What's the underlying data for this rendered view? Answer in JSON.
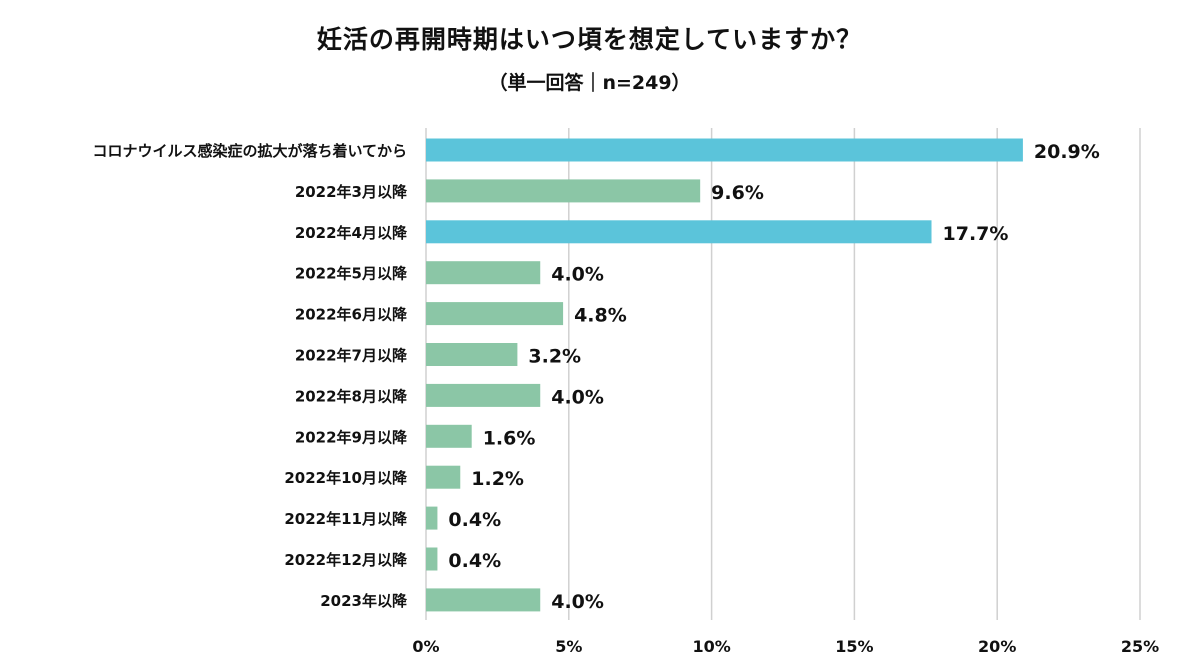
{
  "chart_data": {
    "type": "bar",
    "orientation": "horizontal",
    "title": "妊活の再開時期はいつ頃を想定していますか？",
    "subtitle": "（単一回答｜n=249）",
    "categories": [
      "コロナウイルス感染症の拡大が落ち着いてから",
      "2022年3月以降",
      "2022年4月以降",
      "2022年5月以降",
      "2022年6月以降",
      "2022年7月以降",
      "2022年8月以降",
      "2022年9月以降",
      "2022年10月以降",
      "2022年11月以降",
      "2022年12月以降",
      "2023年以降"
    ],
    "values": [
      20.9,
      9.6,
      17.7,
      4.0,
      4.8,
      3.2,
      4.0,
      1.6,
      1.2,
      0.4,
      0.4,
      4.0
    ],
    "value_labels": [
      "20.9%",
      "9.6%",
      "17.7%",
      "4.0%",
      "4.8%",
      "3.2%",
      "4.0%",
      "1.6%",
      "1.2%",
      "0.4%",
      "0.4%",
      "4.0%"
    ],
    "highlighted": [
      true,
      false,
      true,
      false,
      false,
      false,
      false,
      false,
      false,
      false,
      false,
      false
    ],
    "xlim": [
      0,
      25
    ],
    "xticks": [
      0,
      5,
      10,
      15,
      20,
      25
    ],
    "xtick_labels": [
      "0%",
      "5%",
      "10%",
      "15%",
      "20%",
      "25%"
    ],
    "grid": true,
    "colors": {
      "highlight": "#5bc4da",
      "normal": "#8bc6a6",
      "grid": "#d0d0d0"
    }
  }
}
